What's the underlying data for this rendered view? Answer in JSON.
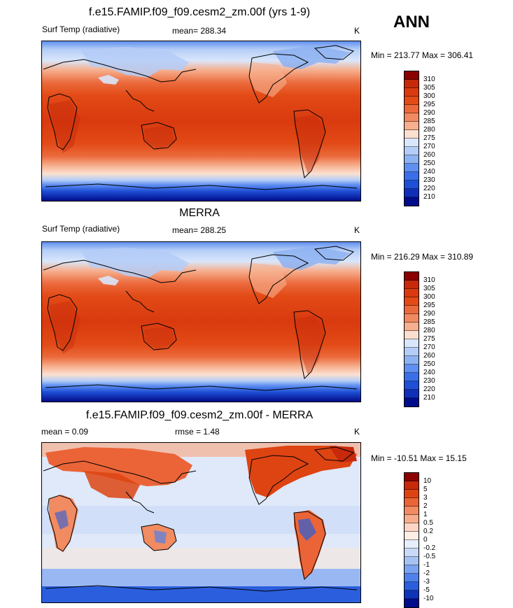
{
  "season": "ANN",
  "panels": [
    {
      "title": "f.e15.FAMIP.f09_f09.cesm2_zm.00f (yrs 1-9)",
      "variable": "Surf Temp (radiative)",
      "stat": "mean= 288.34",
      "units": "K",
      "minmax": "Min = 213.77 Max = 306.41",
      "colorbar_labels": [
        "310",
        "305",
        "300",
        "295",
        "290",
        "285",
        "280",
        "275",
        "270",
        "260",
        "250",
        "240",
        "230",
        "220",
        "210"
      ]
    },
    {
      "title": "MERRA",
      "variable": "Surf Temp (radiative)",
      "stat": "mean= 288.25",
      "units": "K",
      "minmax": "Min = 216.29 Max = 310.89",
      "colorbar_labels": [
        "310",
        "305",
        "300",
        "295",
        "290",
        "285",
        "280",
        "275",
        "270",
        "260",
        "250",
        "240",
        "230",
        "220",
        "210"
      ]
    },
    {
      "title": "f.e15.FAMIP.f09_f09.cesm2_zm.00f - MERRA",
      "stat_mean": "mean =   0.09",
      "stat_rmse": "rmse =   1.48",
      "units": "K",
      "minmax": "Min = -10.51 Max =  15.15",
      "colorbar_labels": [
        "10",
        "5",
        "3",
        "2",
        "1",
        "0.5",
        "0.2",
        "0",
        "-0.2",
        "-0.5",
        "-1",
        "-2",
        "-3",
        "-5",
        "-10"
      ]
    }
  ],
  "colors": {
    "abs_scale": [
      "#8b0000",
      "#c62a0a",
      "#d93a0f",
      "#e24a16",
      "#eb6a3c",
      "#f08a62",
      "#f6b08f",
      "#fbe0d0",
      "#d9e6fb",
      "#b4cdf7",
      "#8db2f1",
      "#5f8ff0",
      "#3a6fe9",
      "#1f4fd6",
      "#0f2fb8",
      "#000c8a"
    ],
    "diff_scale": [
      "#8b0000",
      "#c62a0a",
      "#dd4412",
      "#ea6437",
      "#f08b62",
      "#f6ae8d",
      "#fbd6c6",
      "#fdeee6",
      "#e5eefb",
      "#c8daf7",
      "#a6c2f3",
      "#7ba3ef",
      "#4f81ea",
      "#2a5edc",
      "#0f34b8",
      "#000c8a"
    ]
  }
}
